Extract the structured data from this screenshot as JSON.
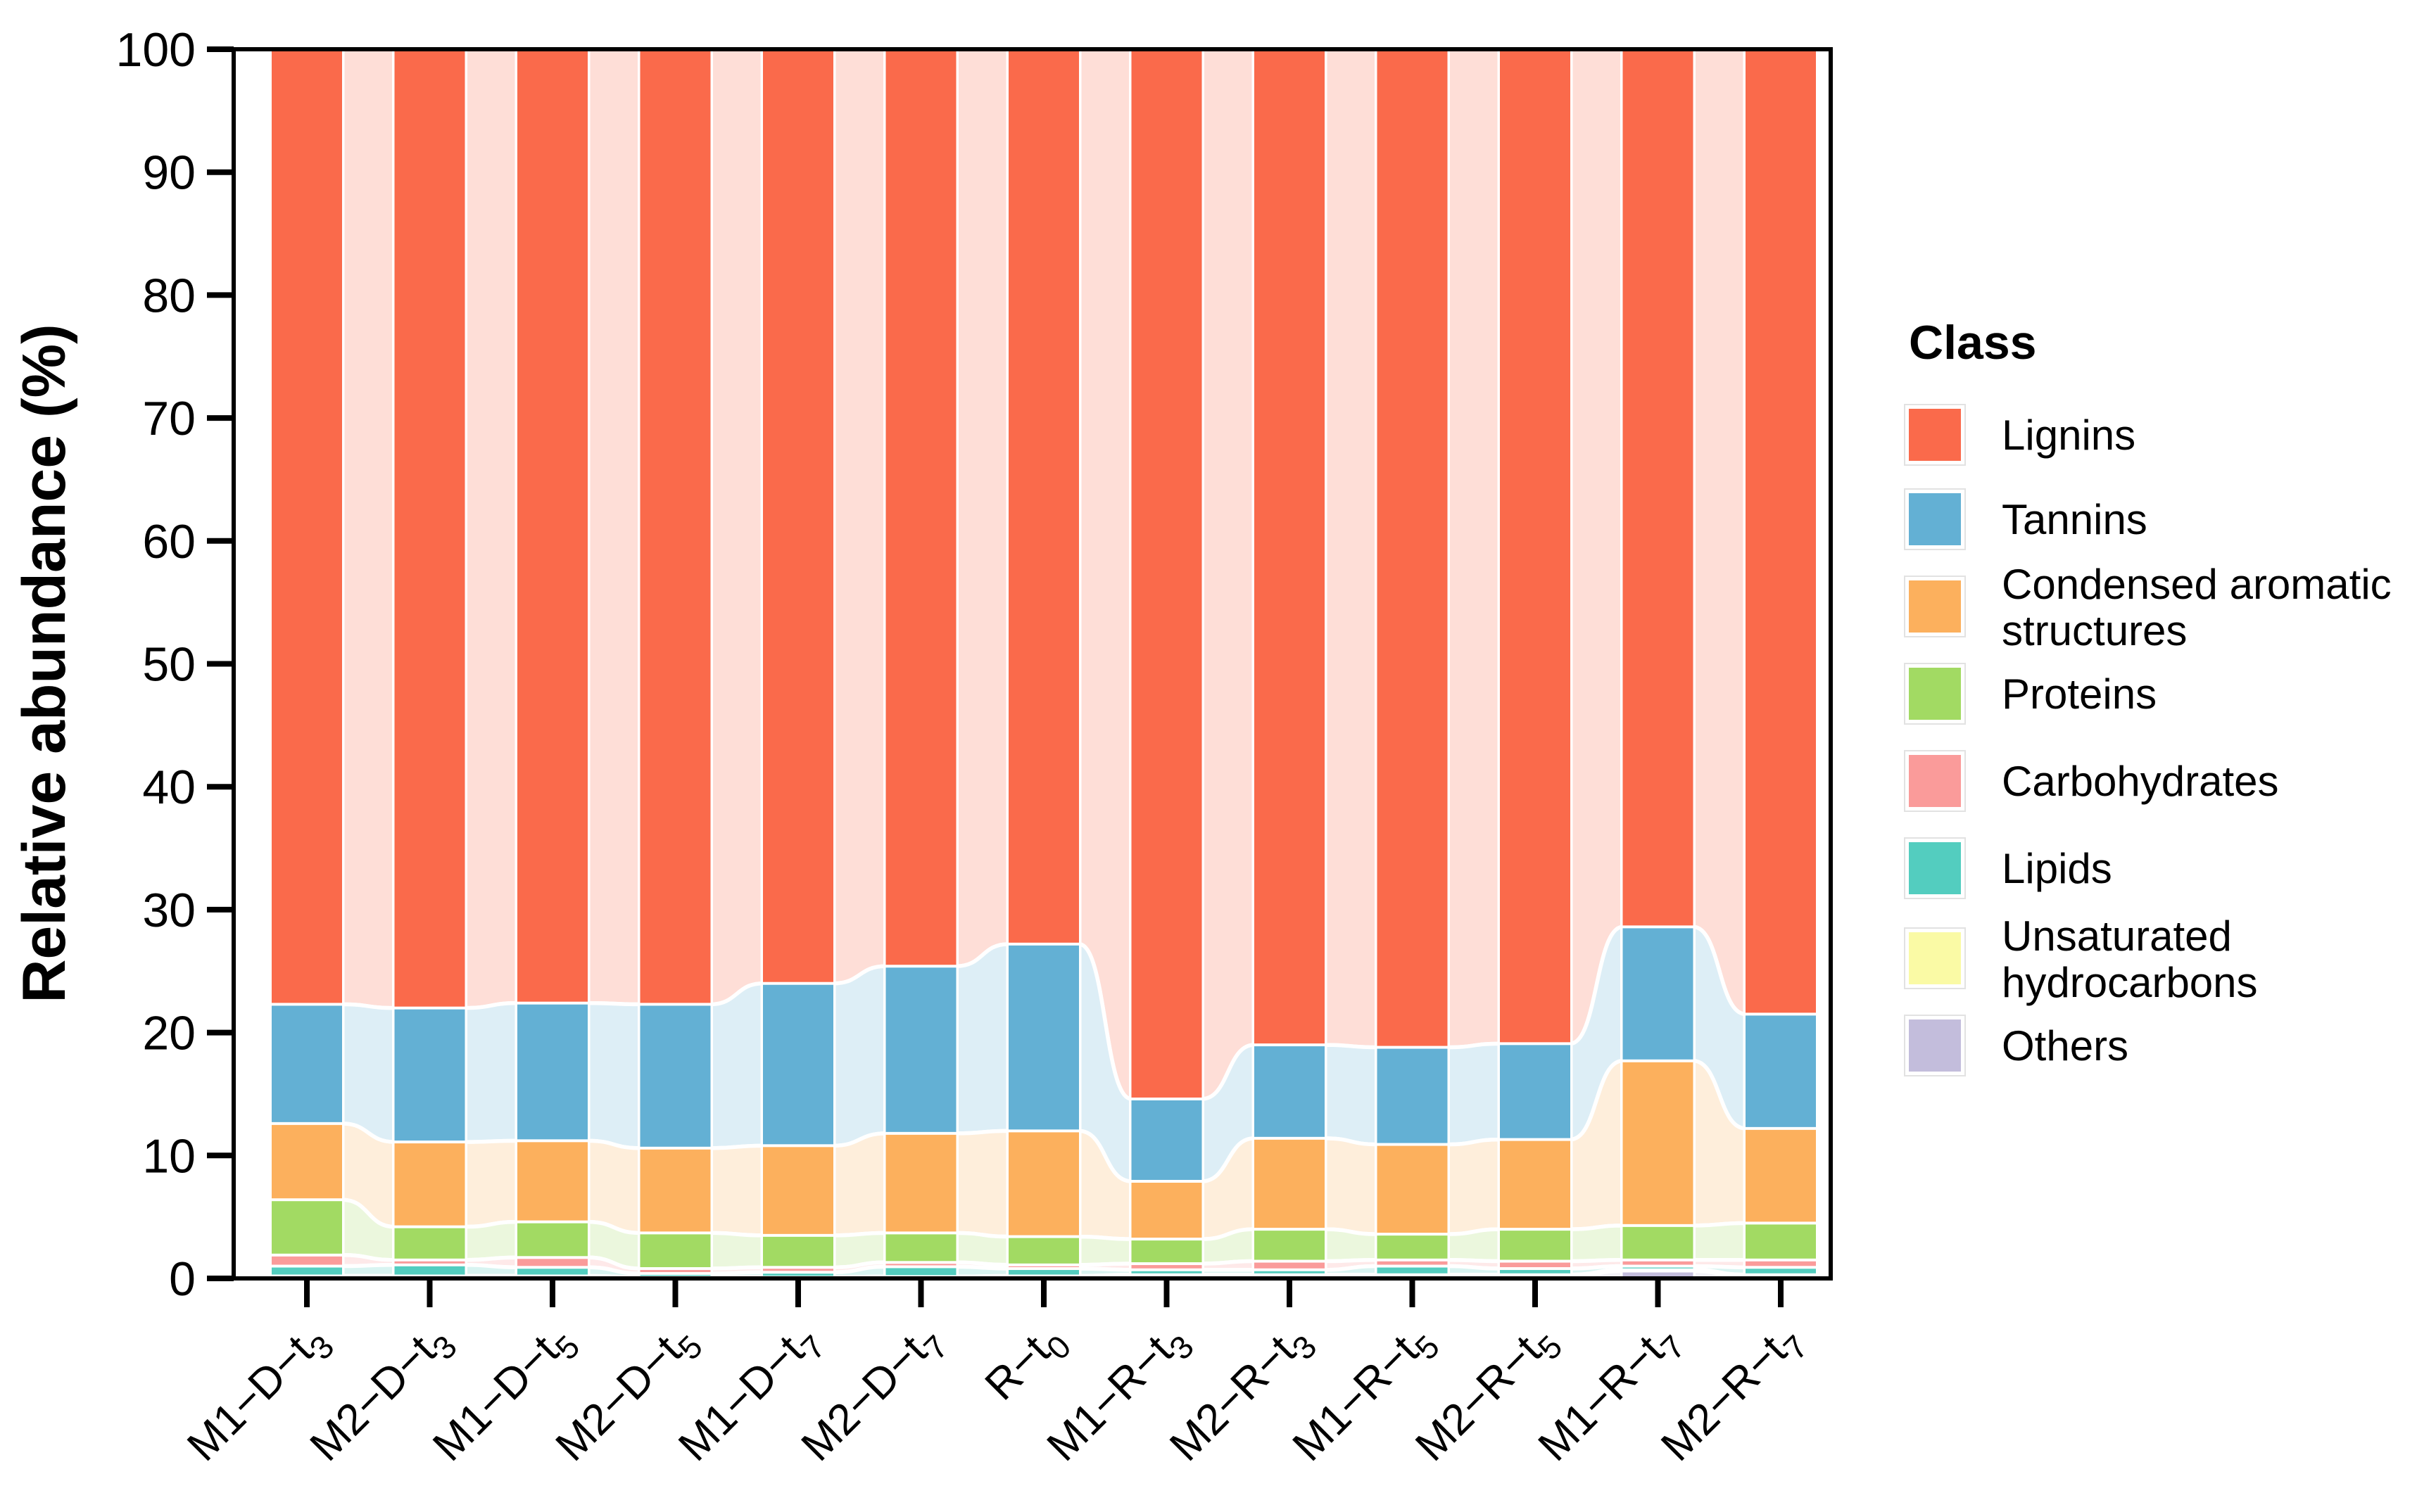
{
  "chart_data": {
    "type": "bar",
    "subtype": "stacked-alluvial",
    "title": "",
    "xlabel": "",
    "ylabel": "Relative abundance (%)",
    "ylim": [
      0,
      100
    ],
    "yticks": [
      0,
      10,
      20,
      30,
      40,
      50,
      60,
      70,
      80,
      90,
      100
    ],
    "grid": "off",
    "legend_position": "right",
    "legend_title": "Class",
    "categories": [
      {
        "main": "M1−D−t",
        "sub": "3"
      },
      {
        "main": "M2−D−t",
        "sub": "3"
      },
      {
        "main": "M1−D−t",
        "sub": "5"
      },
      {
        "main": "M2−D−t",
        "sub": "5"
      },
      {
        "main": "M1−D−t",
        "sub": "7"
      },
      {
        "main": "M2−D−t",
        "sub": "7"
      },
      {
        "main": "R−t",
        "sub": "0"
      },
      {
        "main": "M1−R−t",
        "sub": "3"
      },
      {
        "main": "M2−R−t",
        "sub": "3"
      },
      {
        "main": "M1−R−t",
        "sub": "5"
      },
      {
        "main": "M2−R−t",
        "sub": "5"
      },
      {
        "main": "M1−R−t",
        "sub": "7"
      },
      {
        "main": "M2−R−t",
        "sub": "7"
      }
    ],
    "series": [
      {
        "name": "Lignins",
        "label": "Lignins",
        "color": "#FA6A4B",
        "values": [
          77.7,
          78.0,
          77.6,
          77.7,
          76.0,
          74.6,
          72.8,
          85.4,
          81.0,
          81.2,
          80.9,
          71.4,
          78.5
        ]
      },
      {
        "name": "Tannins",
        "label": "Tannins",
        "color": "#63B0D4",
        "values": [
          9.7,
          10.9,
          11.2,
          11.7,
          13.2,
          13.6,
          15.2,
          6.7,
          7.6,
          7.9,
          7.8,
          10.9,
          9.3
        ]
      },
      {
        "name": "Condensed aromatic structures",
        "label": "Condensed aromatic\nstructures",
        "color": "#FCB05D",
        "values": [
          6.2,
          6.9,
          6.6,
          6.9,
          7.3,
          8.1,
          8.6,
          4.7,
          7.4,
          7.3,
          7.3,
          13.4,
          7.7
        ]
      },
      {
        "name": "Proteins",
        "label": "Proteins",
        "color": "#A2DA63",
        "values": [
          4.5,
          2.7,
          2.9,
          2.9,
          2.6,
          2.4,
          2.3,
          2.0,
          2.6,
          2.1,
          2.6,
          2.8,
          3.0
        ]
      },
      {
        "name": "Carbohydrates",
        "label": "Carbohydrates",
        "color": "#FA9B9A",
        "values": [
          0.9,
          0.4,
          0.8,
          0.4,
          0.4,
          0.35,
          0.3,
          0.5,
          0.7,
          0.5,
          0.6,
          0.5,
          0.6
        ]
      },
      {
        "name": "Lipids",
        "label": "Lipids",
        "color": "#53CDBF",
        "values": [
          0.8,
          0.9,
          0.7,
          0.3,
          0.4,
          0.8,
          0.6,
          0.4,
          0.4,
          0.7,
          0.5,
          0.3,
          0.6
        ]
      },
      {
        "name": "Unsaturated hydrocarbons",
        "label": "Unsaturated\nhydrocarbons",
        "color": "#FAFAA5",
        "values": [
          0.1,
          0.1,
          0.1,
          0.05,
          0.05,
          0.1,
          0.1,
          0.15,
          0.15,
          0.15,
          0.15,
          0.1,
          0.15
        ]
      },
      {
        "name": "Others",
        "label": "Others",
        "color": "#C3BDDC",
        "values": [
          0.1,
          0.1,
          0.1,
          0.05,
          0.05,
          0.05,
          0.1,
          0.15,
          0.15,
          0.15,
          0.15,
          0.6,
          0.15
        ]
      }
    ]
  }
}
